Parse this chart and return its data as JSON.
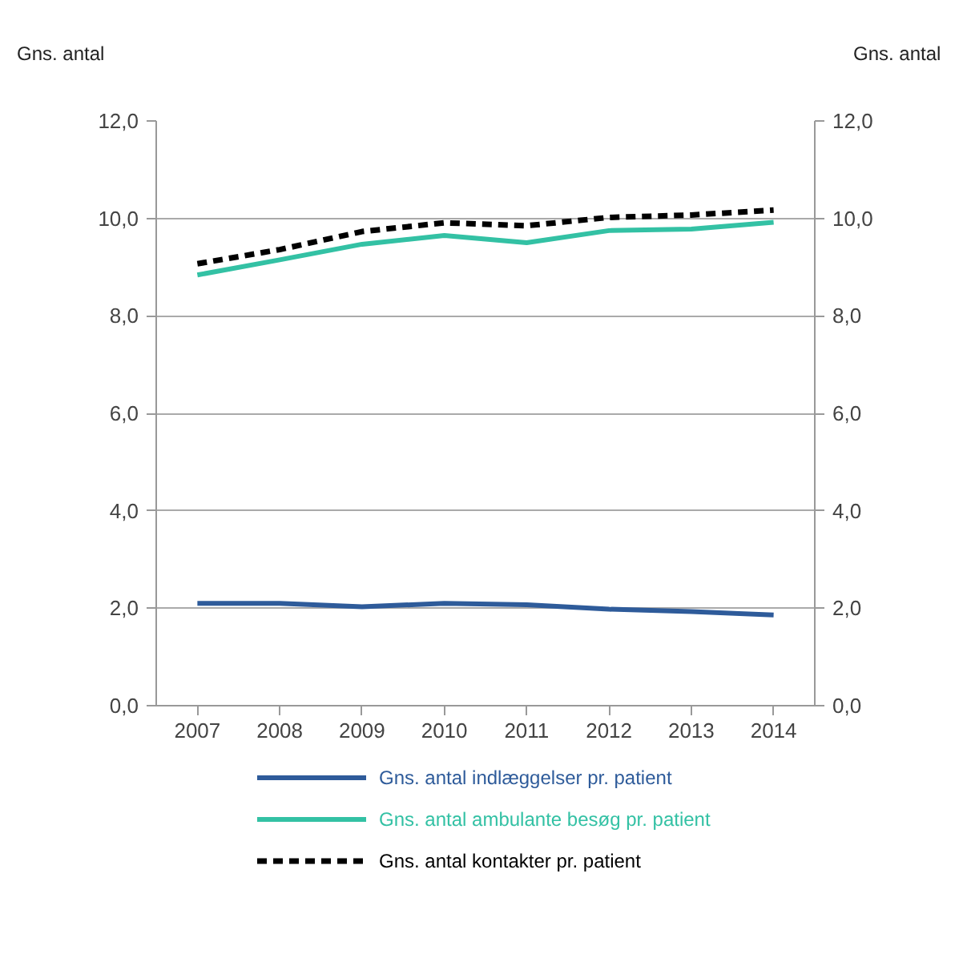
{
  "chart_data": {
    "type": "line",
    "ylabel": "Gns. antal",
    "y2label": "Gns. antal",
    "categories": [
      "2007",
      "2008",
      "2009",
      "2010",
      "2011",
      "2012",
      "2013",
      "2014"
    ],
    "series": [
      {
        "name": "Gns. antal indlæggelser pr. patient",
        "color": "#2e5b9a",
        "values": [
          2.1,
          2.1,
          2.03,
          2.1,
          2.07,
          1.98,
          1.93,
          1.86
        ]
      },
      {
        "name": "Gns. antal ambulante besøg pr. patient",
        "color": "#33c1a4",
        "values": [
          8.84,
          9.15,
          9.47,
          9.65,
          9.5,
          9.75,
          9.78,
          9.92
        ]
      },
      {
        "name": "Gns. antal kontakter pr. patient",
        "color": "#000000",
        "line_style": "dashed",
        "values": [
          9.07,
          9.36,
          9.73,
          9.91,
          9.85,
          10.02,
          10.07,
          10.17
        ]
      }
    ],
    "ylim": [
      0,
      12
    ],
    "yticks": [
      {
        "value": 0,
        "label": "0,0"
      },
      {
        "value": 2,
        "label": "2,0"
      },
      {
        "value": 4,
        "label": "4,0"
      },
      {
        "value": 6,
        "label": "6,0"
      },
      {
        "value": 8,
        "label": "8,0"
      },
      {
        "value": 10,
        "label": "10,0"
      },
      {
        "value": 12,
        "label": "12,0"
      }
    ],
    "y2lim": [
      0,
      12
    ],
    "y2ticks": [
      {
        "value": 0,
        "label": "0,0"
      },
      {
        "value": 2,
        "label": "2,0"
      },
      {
        "value": 4,
        "label": "4,0"
      },
      {
        "value": 6,
        "label": "6,0"
      },
      {
        "value": 8,
        "label": "8,0"
      },
      {
        "value": 10,
        "label": "10,0"
      },
      {
        "value": 12,
        "label": "12,0"
      }
    ],
    "grid": "y",
    "legend": "bottom",
    "line_style": "solid",
    "marker": "none"
  }
}
